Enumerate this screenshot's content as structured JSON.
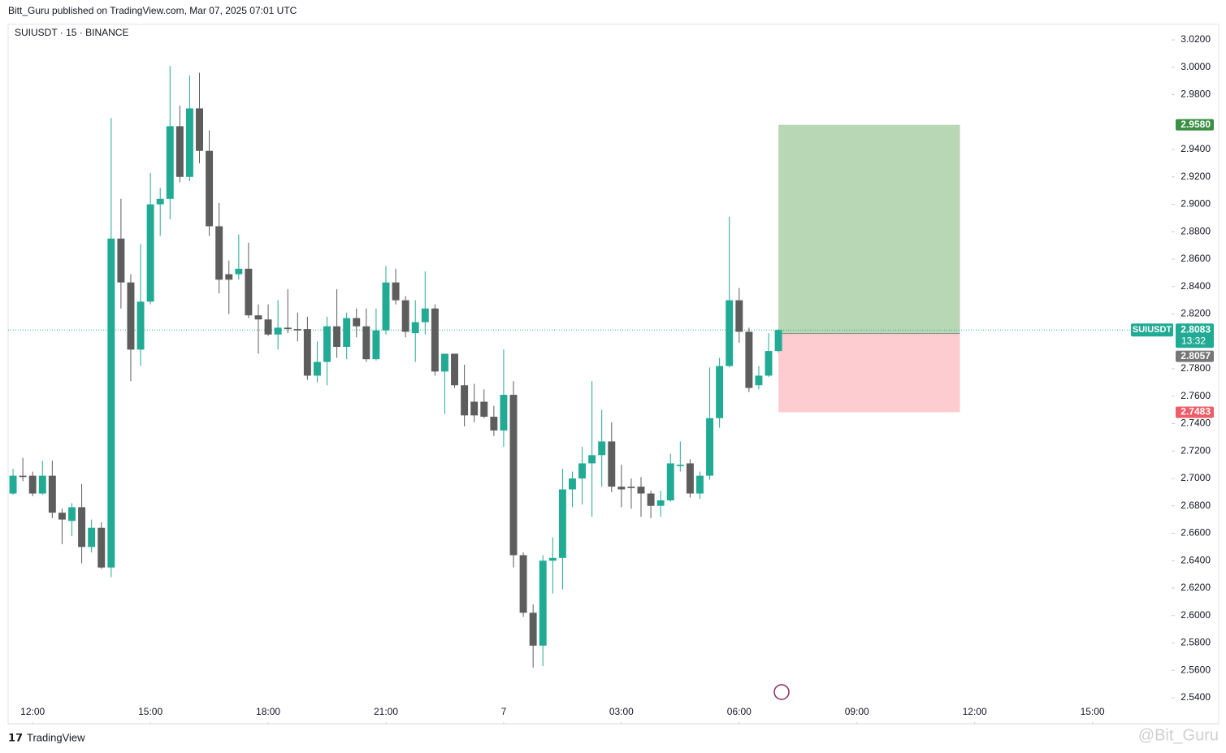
{
  "header": {
    "published": "Bitt_Guru published on TradingView.com, Mar 07, 2025 07:01 UTC"
  },
  "footer": {
    "brand": "TradingView",
    "watermark": "@Bit_Guru"
  },
  "chart_data": {
    "type": "candlestick",
    "title": "SUIUSDT · 15 · BINANCE",
    "symbol": "SUIUSDT",
    "up_color": "#22ab94",
    "down_color": "#5d5d5d",
    "xlim": [
      -0.5,
      117.9
    ],
    "ylim": [
      2.5216,
      3.0313
    ],
    "xticks": [
      {
        "value": 2,
        "label": "12:00"
      },
      {
        "value": 14,
        "label": "15:00"
      },
      {
        "value": 26,
        "label": "18:00"
      },
      {
        "value": 38,
        "label": "21:00"
      },
      {
        "value": 50,
        "label": "7"
      },
      {
        "value": 62,
        "label": "03:00"
      },
      {
        "value": 74,
        "label": "06:00"
      },
      {
        "value": 86,
        "label": "09:00"
      },
      {
        "value": 98,
        "label": "12:00"
      },
      {
        "value": 110,
        "label": "15:00"
      }
    ],
    "yticks": [
      {
        "value": 3.02,
        "label": "3.0200"
      },
      {
        "value": 3.0,
        "label": "3.0000"
      },
      {
        "value": 2.98,
        "label": "2.9800"
      },
      {
        "value": 2.94,
        "label": "2.9400"
      },
      {
        "value": 2.92,
        "label": "2.9200"
      },
      {
        "value": 2.9,
        "label": "2.9000"
      },
      {
        "value": 2.88,
        "label": "2.8800"
      },
      {
        "value": 2.86,
        "label": "2.8600"
      },
      {
        "value": 2.84,
        "label": "2.8400"
      },
      {
        "value": 2.82,
        "label": "2.8200"
      },
      {
        "value": 2.78,
        "label": "2.7800"
      },
      {
        "value": 2.76,
        "label": "2.7600"
      },
      {
        "value": 2.74,
        "label": "2.7400"
      },
      {
        "value": 2.72,
        "label": "2.7200"
      },
      {
        "value": 2.7,
        "label": "2.7000"
      },
      {
        "value": 2.68,
        "label": "2.6800"
      },
      {
        "value": 2.66,
        "label": "2.6600"
      },
      {
        "value": 2.64,
        "label": "2.6400"
      },
      {
        "value": 2.62,
        "label": "2.6200"
      },
      {
        "value": 2.6,
        "label": "2.6000"
      },
      {
        "value": 2.58,
        "label": "2.5800"
      },
      {
        "value": 2.56,
        "label": "2.5600"
      },
      {
        "value": 2.54,
        "label": "2.5400"
      }
    ],
    "open": [
      2.689,
      2.702,
      2.702,
      2.689,
      2.702,
      2.675,
      2.669,
      2.679,
      2.65,
      2.664,
      2.635,
      2.875,
      2.843,
      2.794,
      2.829,
      2.9,
      2.904,
      2.957,
      2.92,
      2.97,
      2.939,
      2.884,
      2.849,
      2.849,
      2.853,
      2.819,
      2.816,
      2.805,
      2.81,
      2.809,
      2.809,
      2.775,
      2.785,
      2.811,
      2.796,
      2.817,
      2.811,
      2.787,
      2.808,
      2.843,
      2.83,
      2.806,
      2.814,
      2.824,
      2.778,
      2.791,
      2.768,
      2.756,
      2.756,
      2.745,
      2.735,
      2.761,
      2.644,
      2.602,
      2.578,
      2.64,
      2.642,
      2.692,
      2.7,
      2.711,
      2.717,
      2.727,
      2.694,
      2.694,
      2.694,
      2.689,
      2.68,
      2.684,
      2.709,
      2.711,
      2.689,
      2.702,
      2.744,
      2.782,
      2.83,
      2.807,
      2.768,
      2.775,
      2.793
    ],
    "high": [
      2.707,
      2.715,
      2.705,
      2.713,
      2.713,
      2.678,
      2.682,
      2.696,
      2.67,
      2.668,
      2.963,
      2.904,
      2.849,
      2.871,
      2.923,
      2.912,
      3.001,
      2.972,
      2.994,
      2.996,
      2.954,
      2.901,
      2.859,
      2.878,
      2.872,
      2.827,
      2.827,
      2.83,
      2.838,
      2.821,
      2.818,
      2.8,
      2.818,
      2.838,
      2.821,
      2.824,
      2.824,
      2.824,
      2.855,
      2.853,
      2.833,
      2.83,
      2.851,
      2.827,
      2.791,
      2.791,
      2.783,
      2.769,
      2.765,
      2.753,
      2.794,
      2.771,
      2.646,
      2.608,
      2.644,
      2.657,
      2.707,
      2.705,
      2.723,
      2.771,
      2.75,
      2.741,
      2.71,
      2.7,
      2.701,
      2.691,
      2.691,
      2.718,
      2.727,
      2.714,
      2.705,
      2.781,
      2.788,
      2.891,
      2.839,
      2.81,
      2.782,
      2.806,
      2.809
    ],
    "low": [
      2.688,
      2.698,
      2.687,
      2.688,
      2.671,
      2.652,
      2.658,
      2.638,
      2.646,
      2.634,
      2.628,
      2.824,
      2.771,
      2.782,
      2.827,
      2.877,
      2.889,
      2.916,
      2.917,
      2.93,
      2.877,
      2.835,
      2.82,
      2.845,
      2.817,
      2.791,
      2.804,
      2.794,
      2.806,
      2.8,
      2.772,
      2.77,
      2.768,
      2.788,
      2.787,
      2.803,
      2.785,
      2.786,
      2.805,
      2.827,
      2.803,
      2.785,
      2.805,
      2.775,
      2.747,
      2.766,
      2.738,
      2.741,
      2.744,
      2.731,
      2.723,
      2.635,
      2.599,
      2.562,
      2.563,
      2.616,
      2.619,
      2.679,
      2.681,
      2.672,
      2.694,
      2.69,
      2.679,
      2.678,
      2.672,
      2.671,
      2.672,
      2.683,
      2.705,
      2.686,
      2.685,
      2.699,
      2.737,
      2.781,
      2.799,
      2.763,
      2.765,
      2.774,
      2.792
    ],
    "close": [
      2.702,
      2.701,
      2.689,
      2.702,
      2.675,
      2.67,
      2.679,
      2.65,
      2.664,
      2.635,
      2.875,
      2.843,
      2.794,
      2.829,
      2.9,
      2.904,
      2.957,
      2.92,
      2.97,
      2.939,
      2.884,
      2.845,
      2.845,
      2.853,
      2.819,
      2.816,
      2.805,
      2.81,
      2.809,
      2.808,
      2.775,
      2.785,
      2.811,
      2.796,
      2.817,
      2.811,
      2.787,
      2.808,
      2.843,
      2.83,
      2.807,
      2.814,
      2.824,
      2.778,
      2.791,
      2.768,
      2.746,
      2.746,
      2.745,
      2.735,
      2.761,
      2.644,
      2.602,
      2.578,
      2.64,
      2.642,
      2.692,
      2.7,
      2.711,
      2.717,
      2.727,
      2.694,
      2.692,
      2.693,
      2.689,
      2.68,
      2.684,
      2.711,
      2.71,
      2.689,
      2.702,
      2.744,
      2.782,
      2.83,
      2.807,
      2.766,
      2.775,
      2.793,
      2.8083
    ],
    "last_price": {
      "value": 2.8083,
      "label": "2.8083"
    },
    "countdown": "13:32",
    "position": {
      "start": 78,
      "end": 96.5,
      "target": {
        "value": 2.958,
        "label": "2.9580"
      },
      "entry": {
        "value": 2.8057,
        "label": "2.8057"
      },
      "stop": {
        "value": 2.7483,
        "label": "2.7483"
      },
      "profit_color": "#b8d8b5",
      "loss_color": "#fdccd1",
      "target_color": "#3b8f43",
      "stop_color": "#ee5d68",
      "entry_color": "#777777"
    }
  }
}
